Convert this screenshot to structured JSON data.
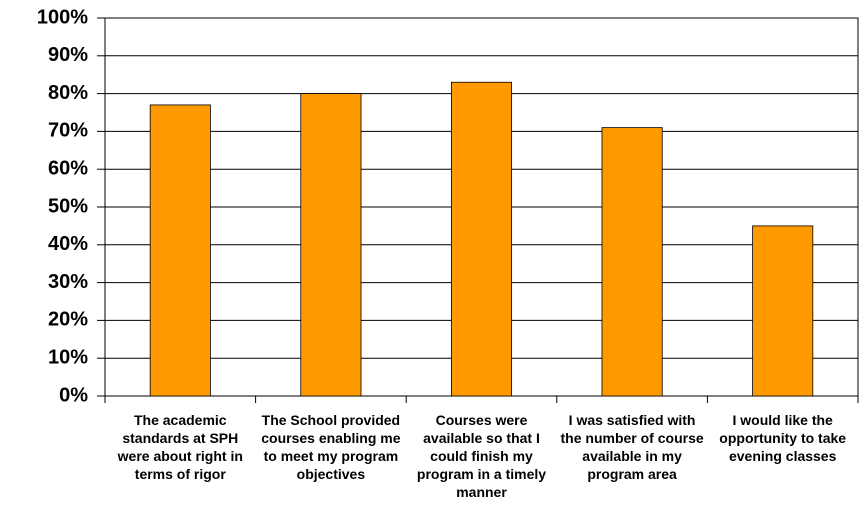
{
  "chart_data": {
    "type": "bar",
    "categories": [
      "The academic standards at SPH were about right in terms of rigor",
      "The School provided courses enabling me to meet my program objectives",
      "Courses were available so that I could finish my program in a timely manner",
      "I was satisfied with the number of course available in my program area",
      "I would like the opportunity to take evening classes"
    ],
    "values": [
      77,
      80,
      83,
      71,
      45
    ],
    "color": "#ff9900",
    "ylim": [
      0,
      100
    ],
    "yticks": [
      {
        "value": 0,
        "label": "0%"
      },
      {
        "value": 10,
        "label": "10%"
      },
      {
        "value": 20,
        "label": "20%"
      },
      {
        "value": 30,
        "label": "30%"
      },
      {
        "value": 40,
        "label": "40%"
      },
      {
        "value": 50,
        "label": "50%"
      },
      {
        "value": 60,
        "label": "60%"
      },
      {
        "value": 70,
        "label": "70%"
      },
      {
        "value": 80,
        "label": "80%"
      },
      {
        "value": 90,
        "label": "90%"
      },
      {
        "value": 100,
        "label": "100%"
      }
    ],
    "grid": true
  }
}
